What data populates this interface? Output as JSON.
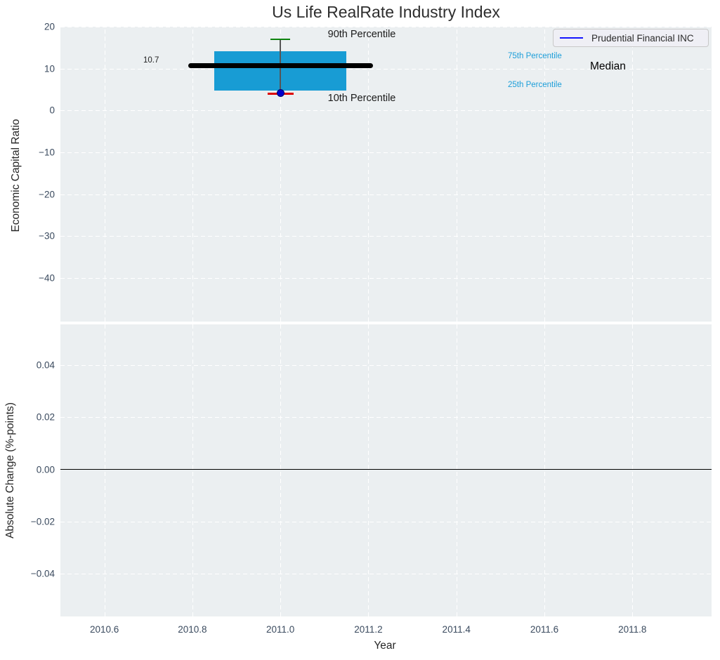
{
  "title": "Us Life RealRate Industry Index",
  "legend": {
    "label": "Prudential Financial INC"
  },
  "top_axes": {
    "ylabel": "Economic Capital Ratio",
    "ytick_labels": [
      "20",
      "10",
      "0",
      "−10",
      "−20",
      "−30",
      "−40"
    ],
    "annotations": {
      "p90_label": "90th Percentile",
      "p10_label": "10th Percentile",
      "p75_label": "75th Percentile",
      "p25_label": "25th Percentile",
      "median_label": "Median",
      "median_value_label": "10.7"
    }
  },
  "bottom_axes": {
    "ylabel": "Absolute Change (%-points)",
    "ytick_labels": [
      "0.04",
      "0.02",
      "0.00",
      "−0.02",
      "−0.04"
    ]
  },
  "x_axis": {
    "label": "Year",
    "tick_labels": [
      "2010.6",
      "2010.8",
      "2011.0",
      "2011.2",
      "2011.4",
      "2011.6",
      "2011.8"
    ]
  },
  "colors": {
    "plot_bg": "#EBEFF1",
    "grid": "#FFFFFF",
    "box_fill": "#189CD4",
    "median_line": "#000000",
    "p90_cap": "#0E830E",
    "p10_cap": "#DD0000",
    "company_marker": "#0000CC",
    "legend_line": "#1414FF",
    "percentile_text": "#1C9ED9",
    "tick_text": "#3A4A5E",
    "label_text": "#262626"
  },
  "chart_data": [
    {
      "type": "box",
      "title": "Us Life RealRate Industry Index",
      "xlabel": "Year",
      "ylabel": "Economic Capital Ratio",
      "x": 2011.0,
      "percentiles": {
        "p90": 17.0,
        "p75": 14.1,
        "median": 10.7,
        "p25": 4.8,
        "p10": 4.0
      },
      "company_point": {
        "name": "Prudential Financial INC",
        "x": 2011.0,
        "y": 4.2
      },
      "box_x_range": [
        2010.85,
        2011.15
      ],
      "median_line_x_range": [
        2010.79,
        2011.21
      ],
      "xlim": [
        2010.5,
        2011.98
      ],
      "ylim": [
        -50.4,
        20
      ],
      "xticks": [
        2010.6,
        2010.8,
        2011.0,
        2011.2,
        2011.4,
        2011.6,
        2011.8
      ],
      "yticks": [
        20,
        10,
        0,
        -10,
        -20,
        -30,
        -40
      ],
      "grid": true,
      "legend_position": "upper right"
    },
    {
      "type": "line",
      "xlabel": "Year",
      "ylabel": "Absolute Change (%-points)",
      "series": [],
      "zero_line_y": 0.0,
      "xlim": [
        2010.5,
        2011.98
      ],
      "ylim": [
        -0.0566,
        0.0558
      ],
      "xticks": [
        2010.6,
        2010.8,
        2011.0,
        2011.2,
        2011.4,
        2011.6,
        2011.8
      ],
      "yticks": [
        0.04,
        0.02,
        0.0,
        -0.02,
        -0.04
      ],
      "grid": true
    }
  ]
}
